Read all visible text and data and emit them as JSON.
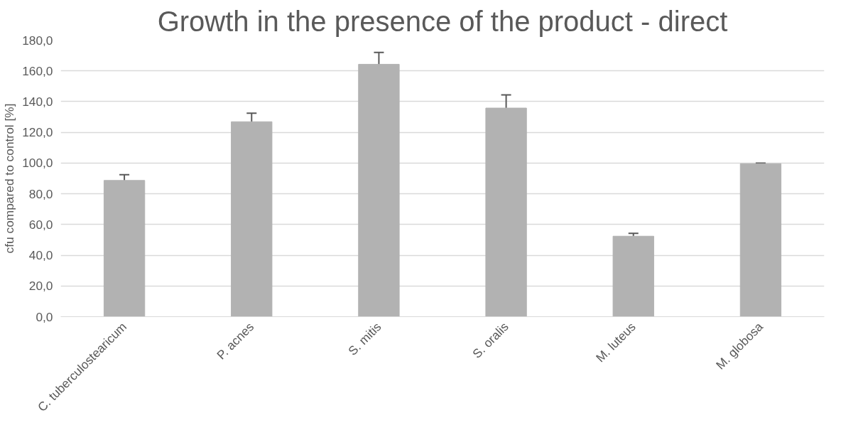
{
  "chart_data": {
    "type": "bar",
    "title": "Growth in the presence of the product - direct",
    "ylabel": "cfu compared to control [%]",
    "categories": [
      "C. tuberculostearicum",
      "P. acnes",
      "S. mitis",
      "S. oralis",
      "M. luteus",
      "M. globosa"
    ],
    "values": [
      88.7,
      126.9,
      164.3,
      135.8,
      52.4,
      99.6
    ],
    "errors": [
      3.7,
      5.5,
      7.7,
      8.6,
      1.9,
      0.3
    ],
    "color": "#b2b2b2",
    "ylim": [
      0,
      180
    ],
    "yticks": [
      {
        "value": 0,
        "label": "0,0"
      },
      {
        "value": 20,
        "label": "20,0"
      },
      {
        "value": 40,
        "label": "40,0"
      },
      {
        "value": 60,
        "label": "60,0"
      },
      {
        "value": 80,
        "label": "80,0"
      },
      {
        "value": 100,
        "label": "100,0"
      },
      {
        "value": 120,
        "label": "120,0"
      },
      {
        "value": 140,
        "label": "140,0"
      },
      {
        "value": 160,
        "label": "160,0"
      },
      {
        "value": 180,
        "label": "180,0"
      }
    ],
    "grid": "y"
  }
}
